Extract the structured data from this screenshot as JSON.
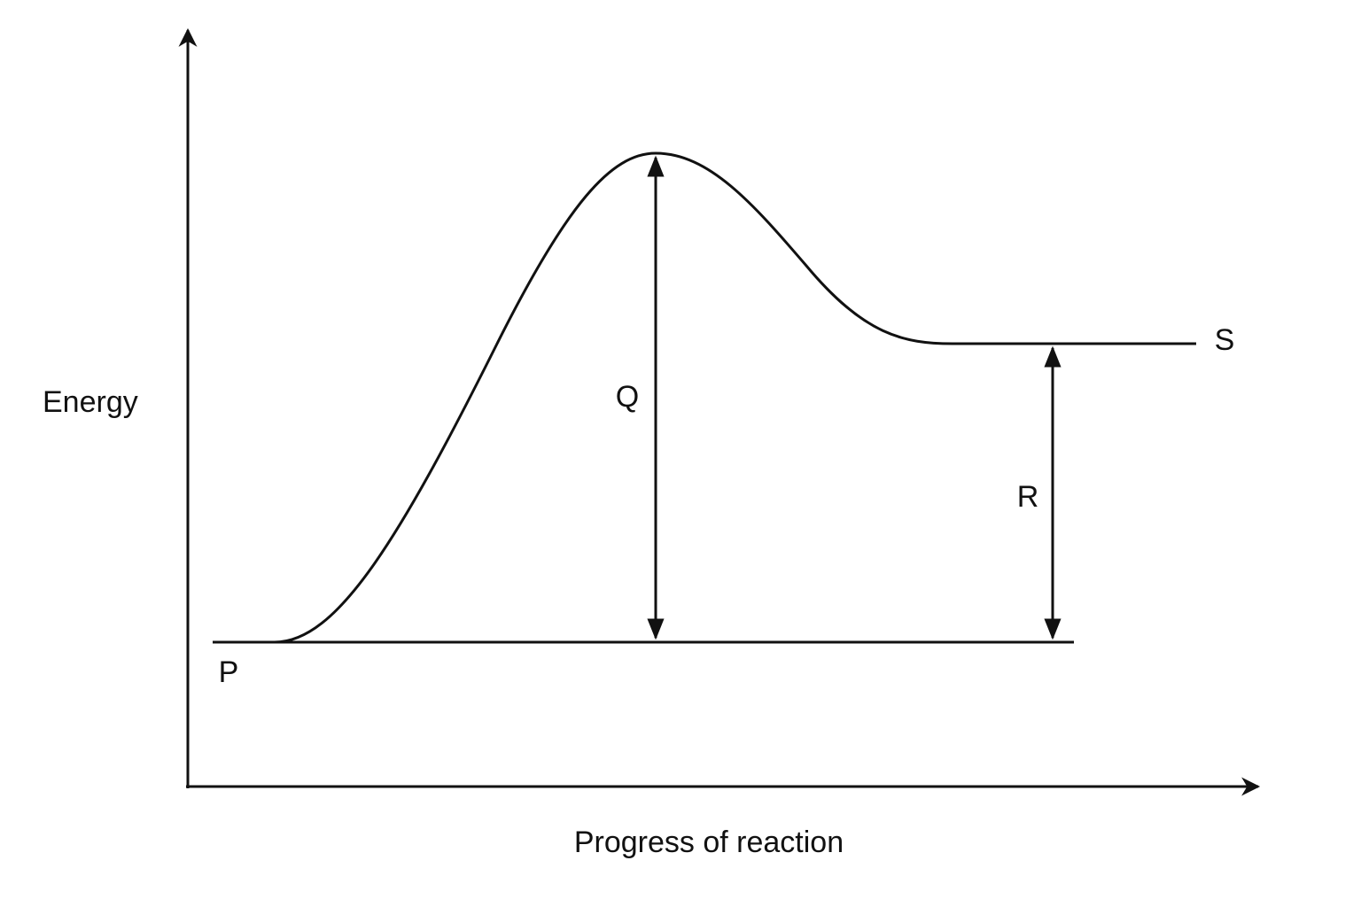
{
  "axes": {
    "y_label": "Energy",
    "x_label": "Progress of reaction"
  },
  "labels": {
    "reactant": "P",
    "activation": "Q",
    "difference": "R",
    "product": "S"
  }
}
